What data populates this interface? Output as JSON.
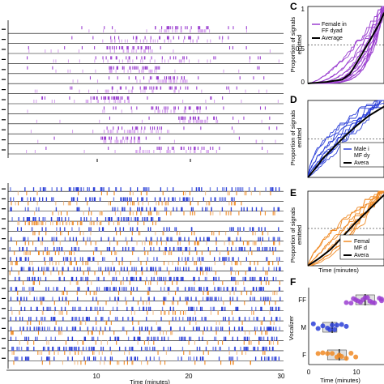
{
  "colors": {
    "ff_female": "#9b3fd0",
    "ff_female_light": "#d9a7f0",
    "mf_male": "#2b3fd8",
    "mf_male_light": "#6f7fe6",
    "mf_female": "#f08a24",
    "mf_female_light": "#f6c08a",
    "average": "#000000"
  },
  "chart_data": [
    {
      "id": "raster_ff",
      "type": "raster",
      "row_count": 15,
      "xlim": [
        0,
        30
      ],
      "series": [
        {
          "rows": 15,
          "density": [
            0.05,
            0.02,
            0.08,
            0.15,
            0.3,
            0.35,
            0.4,
            0.5,
            0.55,
            0.6,
            0.62,
            0.65,
            0.6,
            0.55,
            0.5
          ]
        }
      ]
    },
    {
      "id": "raster_mf",
      "type": "raster",
      "panel_label": "",
      "row_count": 20,
      "xlim": [
        0,
        30
      ],
      "xticks": [
        "0",
        "10",
        "20",
        "30"
      ],
      "xlabel": "Time (minutes)"
    },
    {
      "id": "panel_C",
      "panel_label": "C",
      "type": "line",
      "ylabel": "Proportion of signals emitted",
      "yticks": [
        "0",
        "0.5",
        "1"
      ],
      "ylim": [
        0,
        1
      ],
      "xlim": [
        0,
        1
      ],
      "legend": [
        "Female in FF dyad",
        "Average"
      ],
      "legend_position": "top-left",
      "dashed_line_y": 0.5,
      "series_count": 15,
      "average": {
        "x": [
          0,
          0.25,
          0.45,
          0.55,
          0.65,
          0.75,
          0.85,
          0.95,
          1.0
        ],
        "y": [
          0,
          0.02,
          0.05,
          0.12,
          0.28,
          0.45,
          0.62,
          0.8,
          0.92
        ]
      }
    },
    {
      "id": "panel_D",
      "panel_label": "D",
      "type": "line",
      "ylabel": "Proportion of signals emitted",
      "ylim": [
        0,
        1
      ],
      "xlim": [
        0,
        1
      ],
      "legend": [
        "Male in MF dyad",
        "Average"
      ],
      "legend_position": "right",
      "dashed_line_y": 0.5,
      "series_count": 10,
      "average": {
        "x": [
          0,
          0.1,
          0.2,
          0.35,
          0.5,
          0.65,
          0.8,
          1.0
        ],
        "y": [
          0,
          0.12,
          0.25,
          0.4,
          0.55,
          0.68,
          0.8,
          0.92
        ]
      }
    },
    {
      "id": "panel_E",
      "panel_label": "E",
      "type": "line",
      "ylabel": "Proportion of signals emitted",
      "xlabel": "Time (minutes)",
      "ylim": [
        0,
        1
      ],
      "xlim": [
        0,
        1
      ],
      "legend": [
        "Female in MF dyad",
        "Average"
      ],
      "legend_position": "right",
      "dashed_line_y": 0.5,
      "series_count": 10,
      "average": {
        "x": [
          0,
          0.15,
          0.3,
          0.45,
          0.6,
          0.75,
          0.9,
          1.0
        ],
        "y": [
          0,
          0.1,
          0.22,
          0.38,
          0.55,
          0.7,
          0.85,
          0.95
        ]
      }
    },
    {
      "id": "panel_F",
      "panel_label": "F",
      "type": "scatter",
      "ylabel": "Vocalizer",
      "xlabel": "Time (minutes)",
      "categories": [
        "FF",
        "M",
        "F"
      ],
      "xticks": [
        "0",
        "10"
      ],
      "xlim": [
        0,
        20
      ],
      "series": [
        {
          "category": "FF",
          "values": [
            8,
            9,
            9.5,
            10,
            10.5,
            11,
            11.5,
            12,
            12.5,
            13,
            13.5,
            14,
            15,
            16,
            17
          ]
        },
        {
          "category": "M",
          "values": [
            1,
            2,
            3,
            4,
            4.5,
            5,
            5.5,
            6,
            7,
            8
          ]
        },
        {
          "category": "F",
          "values": [
            2,
            3,
            4,
            5,
            6,
            6.5,
            7,
            8,
            9,
            10
          ]
        }
      ]
    }
  ],
  "labels": {
    "C": "C",
    "D": "D",
    "E": "E",
    "F": "F",
    "c_leg1a": "Female in",
    "c_leg1b": "FF dyad",
    "c_leg2": "Average",
    "d_leg1a": "Male i",
    "d_leg1b": "MF dy",
    "d_leg2": "Avera",
    "e_leg1a": "Femal",
    "e_leg1b": "MF d",
    "e_leg2": "Avera",
    "ylab_prop1": "Proportion of signals",
    "ylab_prop2": "emitted",
    "ylab_vocal": "Vocalizer",
    "xlab_time": "Time (minutes)",
    "tick_0": "0",
    "tick_05": "0.5",
    "tick_1": "1",
    "tick_10": "10",
    "tick_20": "20",
    "tick_30": "30",
    "cat_FF": "FF",
    "cat_M": "M",
    "cat_F": "F"
  }
}
